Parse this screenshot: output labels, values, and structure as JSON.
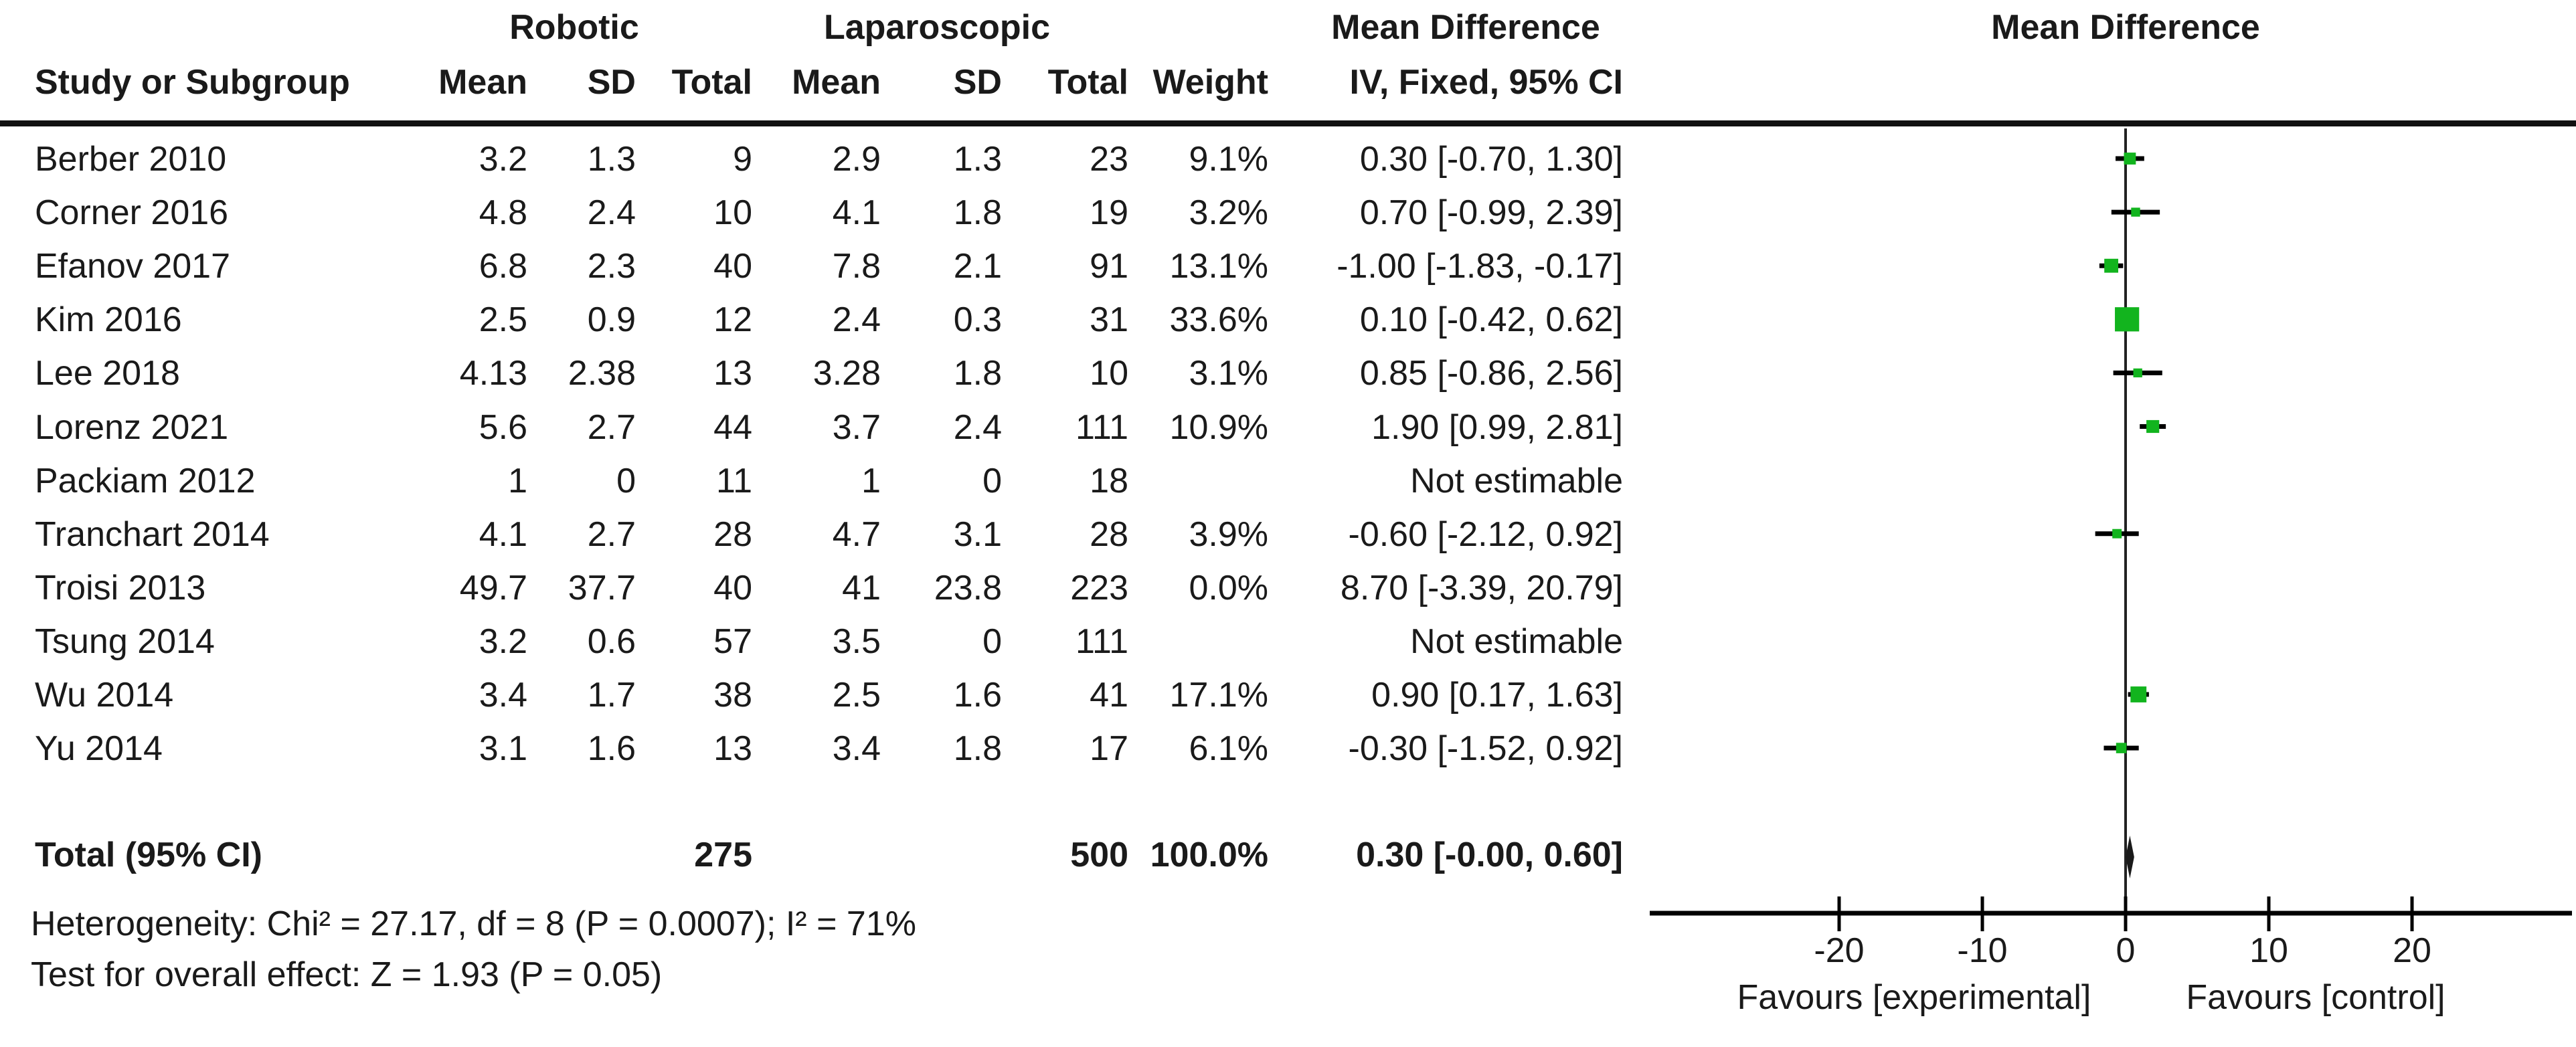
{
  "header": {
    "group_robotic": "Robotic",
    "group_laparoscopic": "Laparoscopic",
    "group_mean_difference_text": "Mean Difference",
    "group_mean_difference_plot": "Mean Difference",
    "col_study": "Study or Subgroup",
    "col_mean_robotic": "Mean",
    "col_sd_robotic": "SD",
    "col_total_robotic": "Total",
    "col_mean_lap": "Mean",
    "col_sd_lap": "SD",
    "col_total_lap": "Total",
    "col_weight": "Weight",
    "col_ci_text": "IV, Fixed, 95% CI",
    "col_ci_plot": "IV, Fixed, 95% CI"
  },
  "colors": {
    "marker_green": "#12B41E",
    "ci_line": "#000000",
    "diamond": "#1a1a1a",
    "axis": "#222222",
    "text": "#1a1a1a"
  },
  "total_row": {
    "label": "Total (95% CI)",
    "robotic_total": "275",
    "lap_total": "500",
    "weight": "100.0%",
    "ci_text": "0.30 [-0.00, 0.60]"
  },
  "footer": {
    "heterogeneity": "Heterogeneity: Chi² = 27.17, df = 8 (P = 0.0007); I² = 71%",
    "overall_effect": "Test for overall effect: Z = 1.93 (P = 0.05)"
  },
  "axis": {
    "ticks": [
      "-20",
      "-10",
      "0",
      "10",
      "20"
    ],
    "favours_left": "Favours [experimental]",
    "favours_right": "Favours [control]"
  },
  "chart_data": {
    "type": "scatter",
    "subtype": "forest_plot_fixed_effect",
    "effect_measure": "Mean Difference",
    "method": "IV, Fixed, 95% CI",
    "xlim": [
      -33,
      31
    ],
    "xticks": [
      -20,
      -10,
      0,
      10,
      20
    ],
    "grid": false,
    "studies": [
      {
        "label": "Berber 2010",
        "r_mean": "3.2",
        "r_sd": "1.3",
        "r_total": "9",
        "l_mean": "2.9",
        "l_sd": "1.3",
        "l_total": "23",
        "weight": "9.1%",
        "ci_text": "0.30 [-0.70, 1.30]",
        "md": 0.3,
        "ci_low": -0.7,
        "ci_high": 1.3,
        "weight_pct": 9.1,
        "marker_visible": true
      },
      {
        "label": "Corner 2016",
        "r_mean": "4.8",
        "r_sd": "2.4",
        "r_total": "10",
        "l_mean": "4.1",
        "l_sd": "1.8",
        "l_total": "19",
        "weight": "3.2%",
        "ci_text": "0.70 [-0.99, 2.39]",
        "md": 0.7,
        "ci_low": -0.99,
        "ci_high": 2.39,
        "weight_pct": 3.2,
        "marker_visible": true
      },
      {
        "label": "Efanov 2017",
        "r_mean": "6.8",
        "r_sd": "2.3",
        "r_total": "40",
        "l_mean": "7.8",
        "l_sd": "2.1",
        "l_total": "91",
        "weight": "13.1%",
        "ci_text": "-1.00 [-1.83, -0.17]",
        "md": -1.0,
        "ci_low": -1.83,
        "ci_high": -0.17,
        "weight_pct": 13.1,
        "marker_visible": true
      },
      {
        "label": "Kim 2016",
        "r_mean": "2.5",
        "r_sd": "0.9",
        "r_total": "12",
        "l_mean": "2.4",
        "l_sd": "0.3",
        "l_total": "31",
        "weight": "33.6%",
        "ci_text": "0.10 [-0.42, 0.62]",
        "md": 0.1,
        "ci_low": -0.42,
        "ci_high": 0.62,
        "weight_pct": 33.6,
        "marker_visible": true
      },
      {
        "label": "Lee 2018",
        "r_mean": "4.13",
        "r_sd": "2.38",
        "r_total": "13",
        "l_mean": "3.28",
        "l_sd": "1.8",
        "l_total": "10",
        "weight": "3.1%",
        "ci_text": "0.85 [-0.86, 2.56]",
        "md": 0.85,
        "ci_low": -0.86,
        "ci_high": 2.56,
        "weight_pct": 3.1,
        "marker_visible": true
      },
      {
        "label": "Lorenz  2021",
        "r_mean": "5.6",
        "r_sd": "2.7",
        "r_total": "44",
        "l_mean": "3.7",
        "l_sd": "2.4",
        "l_total": "111",
        "weight": "10.9%",
        "ci_text": "1.90 [0.99, 2.81]",
        "md": 1.9,
        "ci_low": 0.99,
        "ci_high": 2.81,
        "weight_pct": 10.9,
        "marker_visible": true
      },
      {
        "label": "Packiam 2012",
        "r_mean": "1",
        "r_sd": "0",
        "r_total": "11",
        "l_mean": "1",
        "l_sd": "0",
        "l_total": "18",
        "weight": "",
        "ci_text": "Not estimable",
        "md": null,
        "ci_low": null,
        "ci_high": null,
        "weight_pct": 0,
        "marker_visible": false
      },
      {
        "label": "Tranchart 2014",
        "r_mean": "4.1",
        "r_sd": "2.7",
        "r_total": "28",
        "l_mean": "4.7",
        "l_sd": "3.1",
        "l_total": "28",
        "weight": "3.9%",
        "ci_text": "-0.60 [-2.12, 0.92]",
        "md": -0.6,
        "ci_low": -2.12,
        "ci_high": 0.92,
        "weight_pct": 3.9,
        "marker_visible": true
      },
      {
        "label": "Troisi 2013",
        "r_mean": "49.7",
        "r_sd": "37.7",
        "r_total": "40",
        "l_mean": "41",
        "l_sd": "23.8",
        "l_total": "223",
        "weight": "0.0%",
        "ci_text": "8.70 [-3.39, 20.79]",
        "md": 8.7,
        "ci_low": -3.39,
        "ci_high": 20.79,
        "weight_pct": 0.0,
        "marker_visible": false
      },
      {
        "label": "Tsung 2014",
        "r_mean": "3.2",
        "r_sd": "0.6",
        "r_total": "57",
        "l_mean": "3.5",
        "l_sd": "0",
        "l_total": "111",
        "weight": "",
        "ci_text": "Not estimable",
        "md": null,
        "ci_low": null,
        "ci_high": null,
        "weight_pct": 0,
        "marker_visible": false
      },
      {
        "label": "Wu 2014",
        "r_mean": "3.4",
        "r_sd": "1.7",
        "r_total": "38",
        "l_mean": "2.5",
        "l_sd": "1.6",
        "l_total": "41",
        "weight": "17.1%",
        "ci_text": "0.90 [0.17, 1.63]",
        "md": 0.9,
        "ci_low": 0.17,
        "ci_high": 1.63,
        "weight_pct": 17.1,
        "marker_visible": true
      },
      {
        "label": "Yu 2014",
        "r_mean": "3.1",
        "r_sd": "1.6",
        "r_total": "13",
        "l_mean": "3.4",
        "l_sd": "1.8",
        "l_total": "17",
        "weight": "6.1%",
        "ci_text": "-0.30 [-1.52, 0.92]",
        "md": -0.3,
        "ci_low": -1.52,
        "ci_high": 0.92,
        "weight_pct": 6.1,
        "marker_visible": true
      }
    ],
    "total": {
      "md": 0.3,
      "ci_low": -0.0,
      "ci_high": 0.6
    }
  }
}
